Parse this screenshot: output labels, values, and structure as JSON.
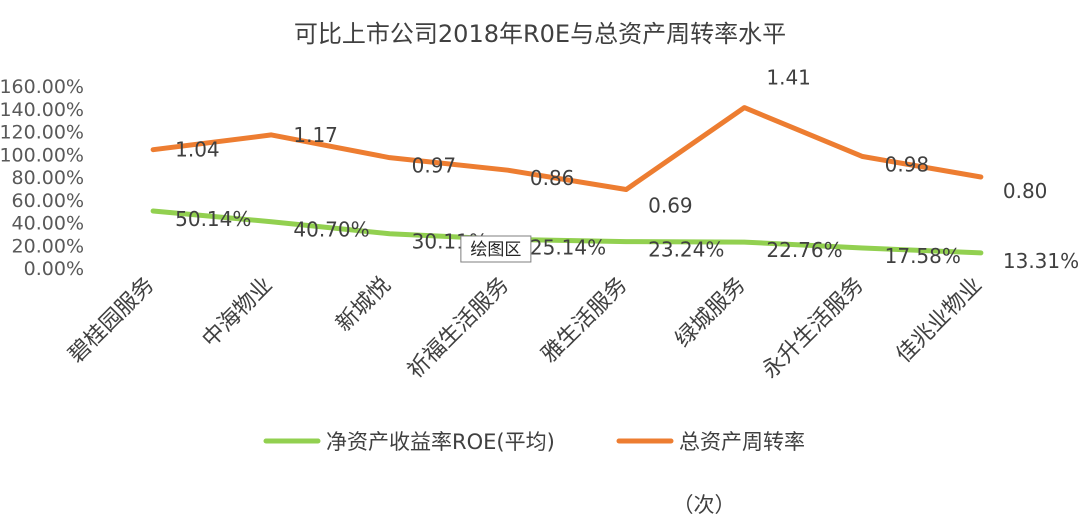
{
  "chart_data": {
    "type": "line",
    "title": "可比上市公司2018年R0E与总资产周转率水平",
    "categories": [
      "碧桂园服务",
      "中海物业",
      "新城悦",
      "祈福生活服务",
      "雅生活服务",
      "绿城服务",
      "永升生活服务",
      "佳兆业物业"
    ],
    "y_ticks": [
      "0.00%",
      "20.00%",
      "40.00%",
      "60.00%",
      "80.00%",
      "100.00%",
      "120.00%",
      "140.00%",
      "160.00%"
    ],
    "ylim": [
      0,
      160
    ],
    "unit_label": "（次）",
    "series": [
      {
        "name": "净资产收益率ROE(平均)",
        "color": "#92d050",
        "values": [
          50.14,
          40.7,
          30.11,
          25.14,
          23.24,
          22.76,
          17.58,
          13.31
        ],
        "labels": [
          "50.14%",
          "40.70%",
          "30.11%",
          "25.14%",
          "23.24%",
          "22.76%",
          "17.58%",
          "13.31%"
        ]
      },
      {
        "name": "总资产周转率",
        "color": "#ed7d31",
        "values": [
          104,
          117,
          97,
          86,
          69,
          141,
          98,
          80
        ],
        "labels": [
          "1.04",
          "1.17",
          "0.97",
          "0.86",
          "0.69",
          "1.41",
          "0.98",
          "0.80"
        ]
      }
    ],
    "tooltip": "绘图区"
  }
}
